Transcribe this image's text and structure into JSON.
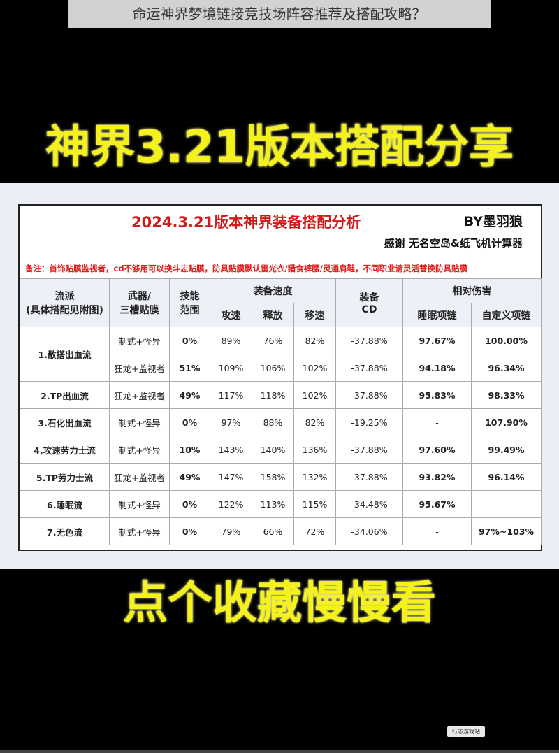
{
  "caption": "命运神界梦境链接竞技场阵容推荐及搭配攻略？",
  "headline_top": "神界3.21版本搭配分享",
  "headline_bottom": "点个收藏慢慢看",
  "sheet": {
    "title": "2024.3.21版本神界装备搭配分析",
    "author": "BY墨羽狼",
    "thanks": "感谢 无名空岛&纸飞机计算器",
    "note": "备注：首饰贴膜监视者，cd不够用可以换斗志贴膜，防具贴膜默认雷光衣/猎食裤腰/灵通肩鞋，不同职业请灵活替换防具贴膜",
    "headers": {
      "genre_line1": "流派",
      "genre_line2": "(具体搭配见附图)",
      "weapon_line1": "武器/",
      "weapon_line2": "三槽贴膜",
      "skill_line1": "技能",
      "skill_line2": "范围",
      "speed_group": "装备速度",
      "atk_speed": "攻速",
      "cast_speed": "释放",
      "move_speed": "移速",
      "cd_line1": "装备",
      "cd_line2": "CD",
      "damage_group": "相对伤害",
      "sleep_neck": "睡眠项链",
      "custom_neck": "自定义项链"
    },
    "rows": [
      {
        "genre": "1.散搭出血流",
        "weapon": "制式+怪异",
        "skill": "0%",
        "atk": "89%",
        "cast": "76%",
        "move": "82%",
        "cd": "-37.88%",
        "sleep": "97.67%",
        "custom": "100.00%"
      },
      {
        "genre": "",
        "weapon": "狂龙+监视者",
        "skill": "51%",
        "atk": "109%",
        "cast": "106%",
        "move": "102%",
        "cd": "-37.88%",
        "sleep": "94.18%",
        "custom": "96.34%"
      },
      {
        "genre": "2.TP出血流",
        "weapon": "狂龙+监视者",
        "skill": "49%",
        "atk": "117%",
        "cast": "118%",
        "move": "102%",
        "cd": "-37.88%",
        "sleep": "95.83%",
        "custom": "98.33%"
      },
      {
        "genre": "3.石化出血流",
        "weapon": "制式+怪异",
        "skill": "0%",
        "atk": "97%",
        "cast": "88%",
        "move": "82%",
        "cd": "-19.25%",
        "sleep": "-",
        "custom": "107.90%"
      },
      {
        "genre": "4.攻速劳力士流",
        "weapon": "制式+怪异",
        "skill": "10%",
        "atk": "143%",
        "cast": "140%",
        "move": "136%",
        "cd": "-37.88%",
        "sleep": "97.60%",
        "custom": "99.49%"
      },
      {
        "genre": "5.TP劳力士流",
        "weapon": "狂龙+监视者",
        "skill": "49%",
        "atk": "147%",
        "cast": "158%",
        "move": "132%",
        "cd": "-37.88%",
        "sleep": "93.82%",
        "custom": "96.14%"
      },
      {
        "genre": "6.睡眠流",
        "weapon": "制式+怪异",
        "skill": "0%",
        "atk": "122%",
        "cast": "113%",
        "move": "115%",
        "cd": "-34.48%",
        "sleep": "95.67%",
        "custom": "-"
      },
      {
        "genre": "7.无色流",
        "weapon": "制式+怪异",
        "skill": "0%",
        "atk": "79%",
        "cast": "66%",
        "move": "72%",
        "cd": "-34.06%",
        "sleep": "-",
        "custom": "97%~103%"
      }
    ]
  },
  "watermark": "行态游戏站",
  "colors": {
    "headline": "#f4f21a",
    "title_red": "#d21a1a",
    "genre_purple": "#5a2c94",
    "sleep_blue": "#1f5ea8",
    "skill_green": "#2a9a3a"
  }
}
